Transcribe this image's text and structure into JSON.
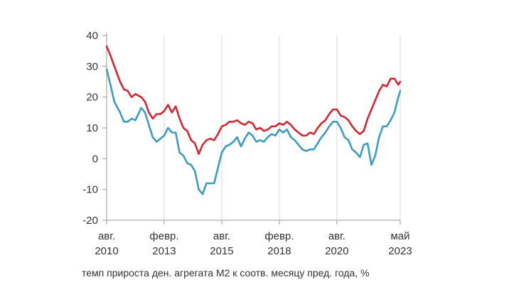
{
  "chart_data": {
    "type": "line",
    "title": "",
    "xlabel": "",
    "ylabel": "",
    "caption": "темп прироста ден. агрегата М2 к соотв. месяцу пред. года, %",
    "ylim": [
      -20,
      40
    ],
    "yticks": [
      "-20",
      "-10",
      "0",
      "10",
      "20",
      "30",
      "40"
    ],
    "xlim": [
      "2010-08",
      "2023-05"
    ],
    "xticks": [
      {
        "date": "2010-08",
        "month": "авг.",
        "year": "2010"
      },
      {
        "date": "2013-02",
        "month": "февр.",
        "year": "2013"
      },
      {
        "date": "2015-08",
        "month": "авг.",
        "year": "2015"
      },
      {
        "date": "2018-02",
        "month": "февр.",
        "year": "2018"
      },
      {
        "date": "2020-08",
        "month": "авг.",
        "year": "2020"
      },
      {
        "date": "2023-05",
        "month": "май",
        "year": "2023"
      }
    ],
    "grid": "vertical",
    "series": [
      {
        "color": "#d62631",
        "points": [
          [
            "2010-08",
            36.5
          ],
          [
            "2010-10",
            33.5
          ],
          [
            "2010-12",
            30
          ],
          [
            "2011-03",
            25
          ],
          [
            "2011-05",
            22.5
          ],
          [
            "2011-07",
            22
          ],
          [
            "2011-09",
            20
          ],
          [
            "2011-11",
            21
          ],
          [
            "2012-02",
            20
          ],
          [
            "2012-04",
            18.5
          ],
          [
            "2012-06",
            15
          ],
          [
            "2012-08",
            13
          ],
          [
            "2012-10",
            14.5
          ],
          [
            "2012-12",
            14.5
          ],
          [
            "2013-02",
            15.5
          ],
          [
            "2013-04",
            17.5
          ],
          [
            "2013-06",
            15
          ],
          [
            "2013-08",
            17
          ],
          [
            "2013-10",
            13
          ],
          [
            "2013-12",
            10
          ],
          [
            "2014-02",
            9
          ],
          [
            "2014-04",
            6
          ],
          [
            "2014-06",
            5
          ],
          [
            "2014-08",
            1.5
          ],
          [
            "2014-10",
            4.5
          ],
          [
            "2014-12",
            6
          ],
          [
            "2015-02",
            6.5
          ],
          [
            "2015-04",
            6
          ],
          [
            "2015-06",
            8
          ],
          [
            "2015-08",
            10.5
          ],
          [
            "2015-10",
            11
          ],
          [
            "2015-12",
            12
          ],
          [
            "2016-02",
            12
          ],
          [
            "2016-04",
            12.5
          ],
          [
            "2016-06",
            11.5
          ],
          [
            "2016-08",
            11
          ],
          [
            "2016-10",
            12
          ],
          [
            "2016-12",
            11.5
          ],
          [
            "2017-02",
            9.5
          ],
          [
            "2017-04",
            10
          ],
          [
            "2017-06",
            9
          ],
          [
            "2017-08",
            9.5
          ],
          [
            "2017-10",
            10.5
          ],
          [
            "2017-12",
            10.5
          ],
          [
            "2018-02",
            11.5
          ],
          [
            "2018-04",
            11
          ],
          [
            "2018-06",
            12
          ],
          [
            "2018-08",
            11
          ],
          [
            "2018-10",
            9.5
          ],
          [
            "2018-12",
            8.5
          ],
          [
            "2019-02",
            7.5
          ],
          [
            "2019-04",
            7.5
          ],
          [
            "2019-06",
            8.5
          ],
          [
            "2019-08",
            8
          ],
          [
            "2019-10",
            10
          ],
          [
            "2019-12",
            11.5
          ],
          [
            "2020-02",
            12.5
          ],
          [
            "2020-04",
            14.5
          ],
          [
            "2020-06",
            16
          ],
          [
            "2020-08",
            16
          ],
          [
            "2020-10",
            14
          ],
          [
            "2020-12",
            13.5
          ],
          [
            "2021-02",
            12.5
          ],
          [
            "2021-04",
            10.5
          ],
          [
            "2021-06",
            9
          ],
          [
            "2021-08",
            8
          ],
          [
            "2021-10",
            9
          ],
          [
            "2021-12",
            13
          ],
          [
            "2022-02",
            16
          ],
          [
            "2022-04",
            19
          ],
          [
            "2022-06",
            22
          ],
          [
            "2022-08",
            24
          ],
          [
            "2022-10",
            23.5
          ],
          [
            "2022-12",
            26
          ],
          [
            "2023-02",
            26
          ],
          [
            "2023-04",
            24
          ],
          [
            "2023-05",
            25
          ]
        ]
      },
      {
        "color": "#3b9cc4",
        "points": [
          [
            "2010-08",
            29
          ],
          [
            "2010-10",
            24
          ],
          [
            "2010-12",
            18.5
          ],
          [
            "2011-03",
            15
          ],
          [
            "2011-05",
            12
          ],
          [
            "2011-07",
            12
          ],
          [
            "2011-09",
            13
          ],
          [
            "2011-11",
            12.5
          ],
          [
            "2012-02",
            16.5
          ],
          [
            "2012-04",
            15
          ],
          [
            "2012-06",
            11
          ],
          [
            "2012-08",
            7
          ],
          [
            "2012-10",
            5.5
          ],
          [
            "2012-12",
            6.5
          ],
          [
            "2013-02",
            7.5
          ],
          [
            "2013-04",
            10
          ],
          [
            "2013-06",
            8.5
          ],
          [
            "2013-08",
            8.5
          ],
          [
            "2013-10",
            2
          ],
          [
            "2013-12",
            1
          ],
          [
            "2014-02",
            -1.5
          ],
          [
            "2014-04",
            -2
          ],
          [
            "2014-06",
            -4
          ],
          [
            "2014-08",
            -10
          ],
          [
            "2014-10",
            -11.5
          ],
          [
            "2014-12",
            -8
          ],
          [
            "2015-02",
            -8
          ],
          [
            "2015-04",
            -8
          ],
          [
            "2015-06",
            -3
          ],
          [
            "2015-08",
            2
          ],
          [
            "2015-10",
            4
          ],
          [
            "2015-12",
            4.5
          ],
          [
            "2016-02",
            5.5
          ],
          [
            "2016-04",
            7
          ],
          [
            "2016-06",
            4
          ],
          [
            "2016-08",
            6.5
          ],
          [
            "2016-10",
            8.5
          ],
          [
            "2016-12",
            7.5
          ],
          [
            "2017-02",
            5.5
          ],
          [
            "2017-04",
            6
          ],
          [
            "2017-06",
            5.5
          ],
          [
            "2017-08",
            7
          ],
          [
            "2017-10",
            8
          ],
          [
            "2017-12",
            7.5
          ],
          [
            "2018-02",
            9.5
          ],
          [
            "2018-04",
            8.5
          ],
          [
            "2018-06",
            9.5
          ],
          [
            "2018-08",
            7
          ],
          [
            "2018-10",
            6
          ],
          [
            "2018-12",
            4.5
          ],
          [
            "2019-02",
            3
          ],
          [
            "2019-04",
            2.5
          ],
          [
            "2019-06",
            3
          ],
          [
            "2019-08",
            3
          ],
          [
            "2019-10",
            5
          ],
          [
            "2019-12",
            7
          ],
          [
            "2020-02",
            8.5
          ],
          [
            "2020-04",
            10.5
          ],
          [
            "2020-06",
            12
          ],
          [
            "2020-08",
            12
          ],
          [
            "2020-10",
            10
          ],
          [
            "2020-12",
            7
          ],
          [
            "2021-02",
            6
          ],
          [
            "2021-04",
            3
          ],
          [
            "2021-06",
            2
          ],
          [
            "2021-08",
            0.5
          ],
          [
            "2021-10",
            4.5
          ],
          [
            "2021-12",
            5
          ],
          [
            "2022-02",
            -2
          ],
          [
            "2022-04",
            1
          ],
          [
            "2022-06",
            7
          ],
          [
            "2022-08",
            10.5
          ],
          [
            "2022-10",
            10.5
          ],
          [
            "2022-12",
            12.5
          ],
          [
            "2023-02",
            15
          ],
          [
            "2023-04",
            20
          ],
          [
            "2023-05",
            22
          ]
        ]
      }
    ]
  }
}
